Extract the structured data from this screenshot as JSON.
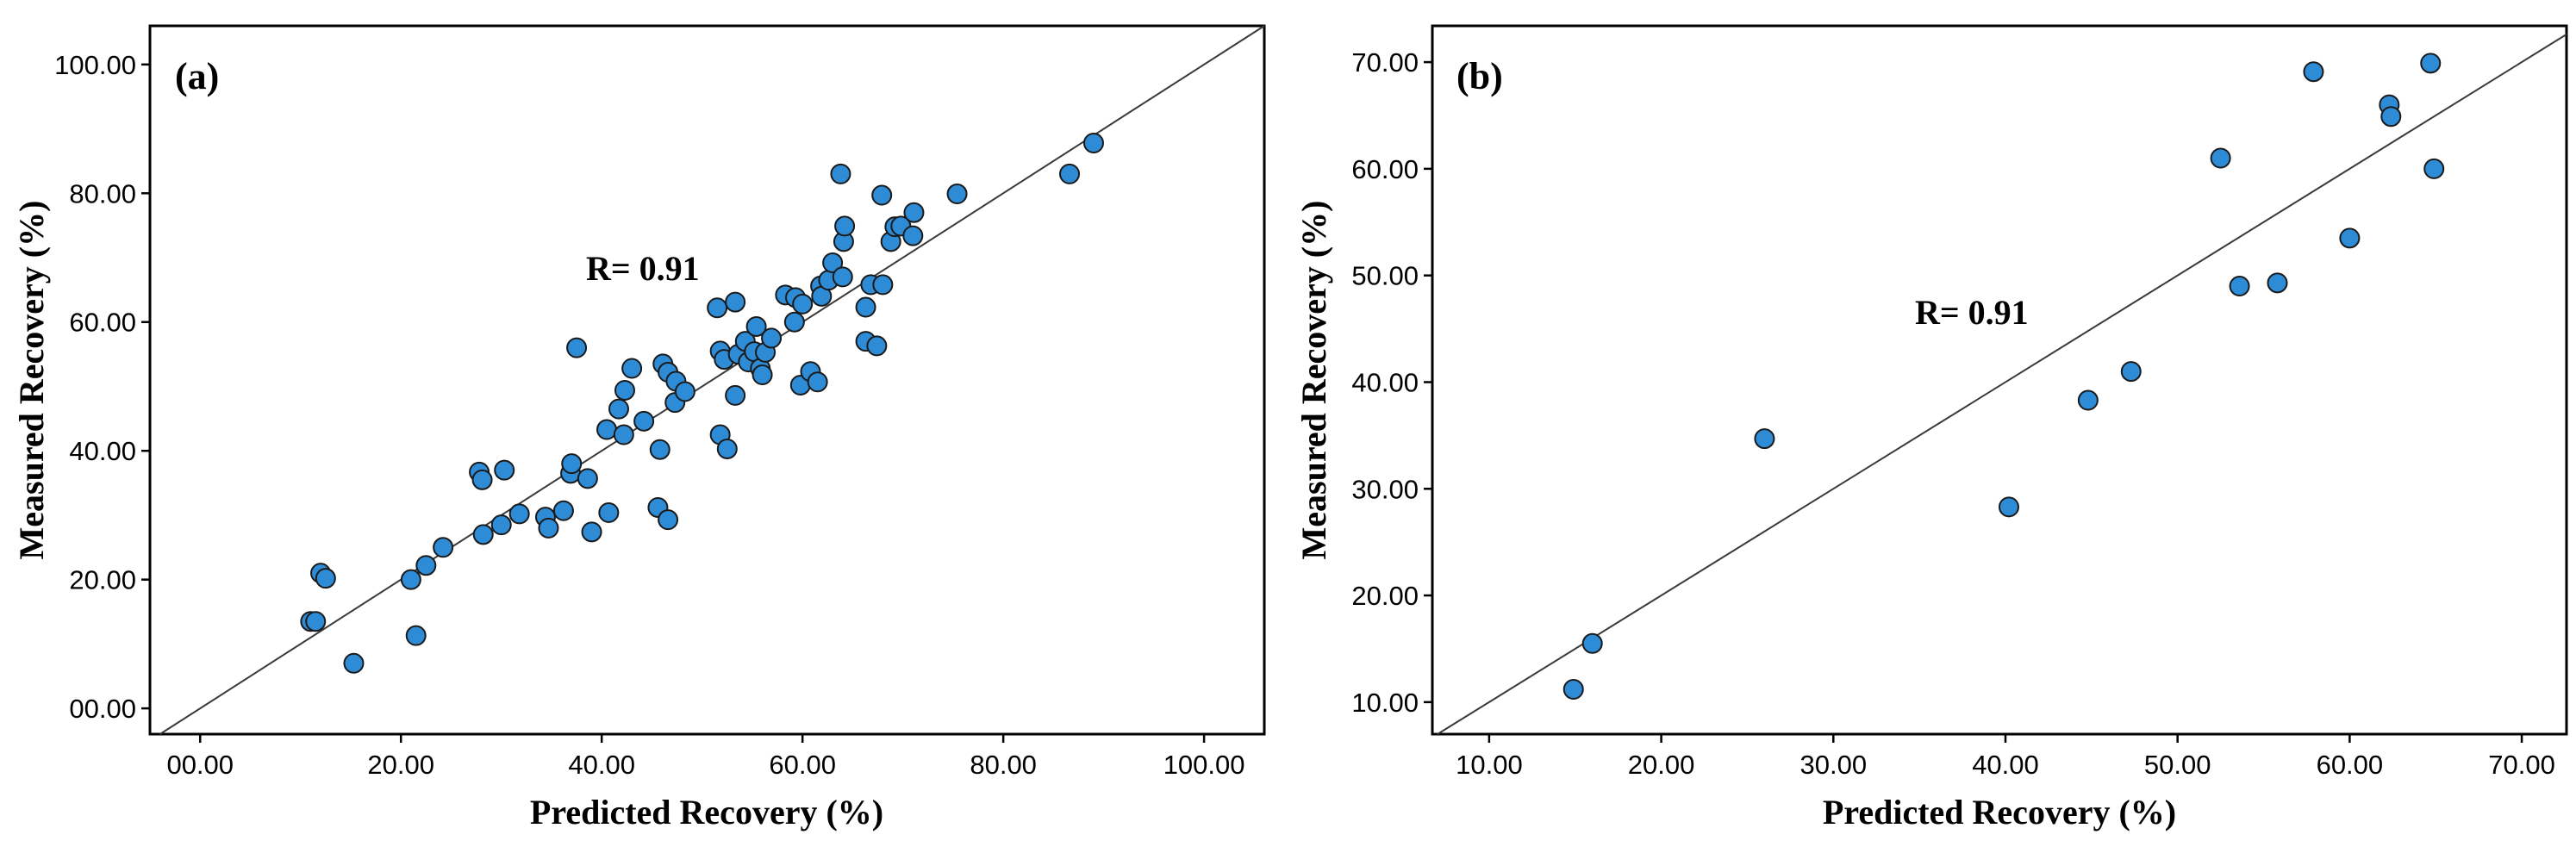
{
  "chart_data": [
    {
      "type": "scatter",
      "panel_label": "(a)",
      "annotation": "R= 0.91",
      "xlabel": "Predicted Recovery (%)",
      "ylabel": "Measured Recovery (%)",
      "xlim": [
        -5,
        106
      ],
      "ylim": [
        -4,
        106
      ],
      "xticks": [
        0,
        20,
        40,
        60,
        80,
        100
      ],
      "xtick_labels": [
        "00.00",
        "20.00",
        "40.00",
        "60.00",
        "80.00",
        "100.00"
      ],
      "yticks": [
        0,
        20,
        40,
        60,
        80,
        100
      ],
      "ytick_labels": [
        "00.00",
        "20.00",
        "40.00",
        "60.00",
        "80.00",
        "100.00"
      ],
      "reference_line": "y = x",
      "points": [
        {
          "x": 11,
          "y": 13.5
        },
        {
          "x": 11.5,
          "y": 13.5
        },
        {
          "x": 12,
          "y": 21
        },
        {
          "x": 12.5,
          "y": 20.2
        },
        {
          "x": 15.3,
          "y": 7
        },
        {
          "x": 21,
          "y": 20
        },
        {
          "x": 21.5,
          "y": 11.3
        },
        {
          "x": 22.5,
          "y": 22.2
        },
        {
          "x": 24.2,
          "y": 25
        },
        {
          "x": 27.8,
          "y": 36.7
        },
        {
          "x": 28.1,
          "y": 35.5
        },
        {
          "x": 28.2,
          "y": 27
        },
        {
          "x": 30,
          "y": 28.5
        },
        {
          "x": 30.3,
          "y": 37
        },
        {
          "x": 31.8,
          "y": 30.2
        },
        {
          "x": 34.4,
          "y": 29.7
        },
        {
          "x": 34.7,
          "y": 28
        },
        {
          "x": 36.2,
          "y": 30.7
        },
        {
          "x": 36.9,
          "y": 36.5
        },
        {
          "x": 37,
          "y": 38
        },
        {
          "x": 37.5,
          "y": 56
        },
        {
          "x": 38.6,
          "y": 35.7
        },
        {
          "x": 39,
          "y": 27.4
        },
        {
          "x": 40.7,
          "y": 30.4
        },
        {
          "x": 40.5,
          "y": 43.3
        },
        {
          "x": 41.7,
          "y": 46.5
        },
        {
          "x": 42.2,
          "y": 42.5
        },
        {
          "x": 42.3,
          "y": 49.4
        },
        {
          "x": 43,
          "y": 52.8
        },
        {
          "x": 44.2,
          "y": 44.6
        },
        {
          "x": 45.6,
          "y": 31.2
        },
        {
          "x": 45.8,
          "y": 40.2
        },
        {
          "x": 46.1,
          "y": 53.5
        },
        {
          "x": 46.6,
          "y": 52.2
        },
        {
          "x": 46.6,
          "y": 29.3
        },
        {
          "x": 47.3,
          "y": 47.5
        },
        {
          "x": 47.4,
          "y": 50.8
        },
        {
          "x": 48.3,
          "y": 49.2
        },
        {
          "x": 51.5,
          "y": 62.2
        },
        {
          "x": 51.8,
          "y": 55.5
        },
        {
          "x": 51.8,
          "y": 42.5
        },
        {
          "x": 52.2,
          "y": 54.2
        },
        {
          "x": 52.5,
          "y": 40.3
        },
        {
          "x": 53.3,
          "y": 63.1
        },
        {
          "x": 53.3,
          "y": 48.6
        },
        {
          "x": 53.6,
          "y": 55
        },
        {
          "x": 54.3,
          "y": 57
        },
        {
          "x": 54.6,
          "y": 53.8
        },
        {
          "x": 55.2,
          "y": 55.4
        },
        {
          "x": 55.4,
          "y": 59.3
        },
        {
          "x": 55.8,
          "y": 52.8
        },
        {
          "x": 56,
          "y": 51.8
        },
        {
          "x": 56.3,
          "y": 55.3
        },
        {
          "x": 56.9,
          "y": 57.5
        },
        {
          "x": 58.3,
          "y": 64.2
        },
        {
          "x": 59.2,
          "y": 60
        },
        {
          "x": 59.3,
          "y": 63.8
        },
        {
          "x": 59.8,
          "y": 50.2
        },
        {
          "x": 60,
          "y": 62.8
        },
        {
          "x": 60.8,
          "y": 52.3
        },
        {
          "x": 61.5,
          "y": 50.7
        },
        {
          "x": 61.8,
          "y": 65.6
        },
        {
          "x": 61.9,
          "y": 64
        },
        {
          "x": 62.6,
          "y": 66.5
        },
        {
          "x": 63,
          "y": 69.2
        },
        {
          "x": 63.8,
          "y": 83
        },
        {
          "x": 64,
          "y": 67
        },
        {
          "x": 64.1,
          "y": 72.5
        },
        {
          "x": 64.2,
          "y": 74.9
        },
        {
          "x": 66.3,
          "y": 62.3
        },
        {
          "x": 66.3,
          "y": 57
        },
        {
          "x": 66.8,
          "y": 65.8
        },
        {
          "x": 67.4,
          "y": 56.3
        },
        {
          "x": 67.9,
          "y": 79.7
        },
        {
          "x": 68,
          "y": 65.8
        },
        {
          "x": 68.8,
          "y": 72.5
        },
        {
          "x": 69.2,
          "y": 74.8
        },
        {
          "x": 69.8,
          "y": 74.9
        },
        {
          "x": 71,
          "y": 73.4
        },
        {
          "x": 71.1,
          "y": 77
        },
        {
          "x": 75.4,
          "y": 79.9
        },
        {
          "x": 86.6,
          "y": 83
        },
        {
          "x": 89,
          "y": 87.8
        }
      ]
    },
    {
      "type": "scatter",
      "panel_label": "(b)",
      "annotation": "R= 0.91",
      "xlabel": "Predicted Recovery (%)",
      "ylabel": "Measured Recovery (%)",
      "xlim": [
        6.7,
        72.6
      ],
      "ylim": [
        7,
        73.4
      ],
      "xticks": [
        10,
        20,
        30,
        40,
        50,
        60,
        70
      ],
      "xtick_labels": [
        "10.00",
        "20.00",
        "30.00",
        "40.00",
        "50.00",
        "60.00",
        "70.00"
      ],
      "yticks": [
        10,
        20,
        30,
        40,
        50,
        60,
        70
      ],
      "ytick_labels": [
        "10.00",
        "20.00",
        "30.00",
        "40.00",
        "50.00",
        "60.00",
        "70.00"
      ],
      "reference_line": "y = x",
      "points": [
        {
          "x": 14.9,
          "y": 11.2
        },
        {
          "x": 16,
          "y": 15.5
        },
        {
          "x": 26,
          "y": 34.7
        },
        {
          "x": 40.2,
          "y": 28.3
        },
        {
          "x": 44.8,
          "y": 38.3
        },
        {
          "x": 47.3,
          "y": 41
        },
        {
          "x": 52.5,
          "y": 61
        },
        {
          "x": 53.6,
          "y": 49
        },
        {
          "x": 55.8,
          "y": 49.3
        },
        {
          "x": 57.9,
          "y": 69.1
        },
        {
          "x": 60,
          "y": 53.5
        },
        {
          "x": 62.3,
          "y": 66
        },
        {
          "x": 62.4,
          "y": 64.9
        },
        {
          "x": 64.7,
          "y": 69.9
        },
        {
          "x": 64.9,
          "y": 60
        }
      ]
    }
  ]
}
